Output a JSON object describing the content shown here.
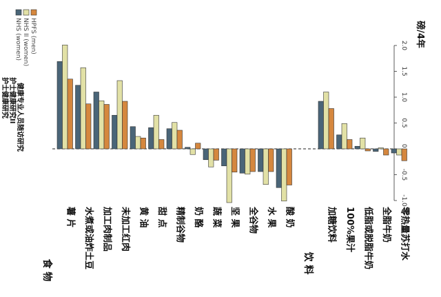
{
  "chart_data": {
    "type": "bar",
    "orientation": "rotated-90-clockwise",
    "unit_label": "磅/4年",
    "value_range": [
      -1.0,
      2.0
    ],
    "ticks": [
      "-1.0",
      "-0.5",
      "0.0",
      "0.5",
      "1.0",
      "1.5",
      "2.0"
    ],
    "tick_values": [
      -1.0,
      -0.5,
      0.0,
      0.5,
      1.0,
      1.5,
      2.0
    ],
    "legend": [
      {
        "en": "NHS (women)",
        "cn": "护士健康研究",
        "color": "#4a6578"
      },
      {
        "en": "NHS II (women)",
        "cn": "护士健康研究II",
        "color": "#e2e1a6"
      },
      {
        "en": "HPFS (men)",
        "cn": "健康专业人员随访研究",
        "color": "#d5873e"
      }
    ],
    "groups": [
      {
        "label": "食 物",
        "categories": [
          {
            "label": "薯 片",
            "values": [
              1.69,
              2.01,
              1.35
            ]
          },
          {
            "label": "水煮或油炸土豆",
            "values": [
              1.23,
              1.57,
              0.87
            ]
          },
          {
            "label": "加工肉制品",
            "values": [
              1.1,
              0.93,
              0.86
            ]
          },
          {
            "label": "未加工红肉",
            "values": [
              0.65,
              1.32,
              0.92
            ]
          },
          {
            "label": "黄 油",
            "values": [
              0.43,
              0.24,
              0.21
            ]
          },
          {
            "label": "甜 点",
            "values": [
              0.41,
              0.65,
              0.18
            ]
          },
          {
            "label": "精制谷物",
            "values": [
              0.39,
              0.51,
              0.36
            ]
          },
          {
            "label": "奶 酪",
            "values": [
              0.03,
              -0.11,
              0.11
            ]
          },
          {
            "label": "蔬 菜",
            "values": [
              -0.21,
              -0.35,
              -0.22
            ]
          },
          {
            "label": "坚 果",
            "values": [
              -0.33,
              -1.04,
              -0.45
            ]
          },
          {
            "label": "全谷物",
            "values": [
              -0.47,
              -0.49,
              -0.44
            ]
          },
          {
            "label": "水 果",
            "values": [
              -0.44,
              -0.69,
              -0.44
            ]
          },
          {
            "label": "酸 奶",
            "values": [
              -0.75,
              -1.01,
              -0.7
            ]
          }
        ]
      },
      {
        "label": "饮 料",
        "categories": [
          {
            "label": "加糖饮料",
            "values": [
              0.92,
              1.1,
              0.78
            ]
          },
          {
            "label": "100%果汁",
            "values": [
              0.27,
              0.49,
              0.18
            ]
          },
          {
            "label": "低脂或脱脂牛奶",
            "values": [
              0.05,
              0.21,
              -0.04
            ]
          },
          {
            "label": "全脂牛奶",
            "values": [
              -0.05,
              0.02,
              -0.12
            ]
          },
          {
            "label": "零热量苏打水",
            "values": [
              -0.08,
              -0.12,
              -0.23
            ]
          }
        ]
      }
    ]
  }
}
